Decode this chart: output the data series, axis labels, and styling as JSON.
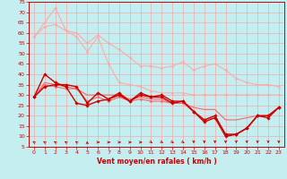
{
  "xlabel": "Vent moyen/en rafales ( km/h )",
  "xlim": [
    -0.5,
    23.5
  ],
  "ylim": [
    5,
    75
  ],
  "yticks": [
    5,
    10,
    15,
    20,
    25,
    30,
    35,
    40,
    45,
    50,
    55,
    60,
    65,
    70,
    75
  ],
  "xticks": [
    0,
    1,
    2,
    3,
    4,
    5,
    6,
    7,
    8,
    9,
    10,
    11,
    12,
    13,
    14,
    15,
    16,
    17,
    18,
    19,
    20,
    21,
    22,
    23
  ],
  "bg_color": "#c5eef0",
  "grid_color": "#ff9999",
  "series": [
    {
      "x": [
        0,
        1,
        2,
        3,
        4,
        5,
        6,
        7,
        8,
        9,
        10,
        11,
        12,
        13,
        14,
        15,
        16,
        17,
        18,
        19,
        20,
        21,
        22,
        23
      ],
      "y": [
        58,
        63,
        64,
        61,
        60,
        55,
        59,
        55,
        52,
        48,
        44,
        44,
        43,
        44,
        46,
        42,
        44,
        45,
        42,
        38,
        36,
        35,
        35,
        34
      ],
      "color": "#ffaaaa",
      "lw": 0.8,
      "marker": "D",
      "ms": 1.5,
      "zorder": 2
    },
    {
      "x": [
        0,
        1,
        2,
        3,
        4,
        5,
        6,
        7,
        8,
        9,
        10,
        11,
        12,
        13,
        14,
        15,
        16,
        17,
        18,
        19,
        20,
        21,
        22,
        23
      ],
      "y": [
        58,
        65,
        72,
        61,
        58,
        51,
        58,
        45,
        36,
        35,
        34,
        32,
        31,
        31,
        31,
        30,
        30,
        30,
        30,
        30,
        30,
        30,
        30,
        30
      ],
      "color": "#ffaaaa",
      "lw": 0.8,
      "marker": "D",
      "ms": 1.5,
      "zorder": 2
    },
    {
      "x": [
        0,
        1,
        2,
        3,
        4,
        5,
        6,
        7,
        8,
        9,
        10,
        11,
        12,
        13,
        14,
        15,
        16,
        17,
        18,
        19,
        20,
        21,
        22,
        23
      ],
      "y": [
        29,
        34,
        35,
        35,
        34,
        26,
        31,
        28,
        30,
        27,
        31,
        29,
        30,
        27,
        27,
        22,
        18,
        20,
        11,
        11,
        14,
        20,
        20,
        24
      ],
      "color": "#cc0000",
      "lw": 1.0,
      "marker": "D",
      "ms": 1.8,
      "zorder": 3
    },
    {
      "x": [
        0,
        1,
        2,
        3,
        4,
        5,
        6,
        7,
        8,
        9,
        10,
        11,
        12,
        13,
        14,
        15,
        16,
        17,
        18,
        19,
        20,
        21,
        22,
        23
      ],
      "y": [
        29,
        40,
        36,
        34,
        26,
        25,
        27,
        28,
        31,
        27,
        30,
        29,
        29,
        26,
        27,
        22,
        17,
        19,
        10,
        11,
        14,
        20,
        19,
        24
      ],
      "color": "#cc0000",
      "lw": 1.0,
      "marker": "D",
      "ms": 1.8,
      "zorder": 3
    },
    {
      "x": [
        0,
        1,
        2,
        3,
        4,
        5,
        6,
        7,
        8,
        9,
        10,
        11,
        12,
        13,
        14,
        15,
        16,
        17,
        18,
        19,
        20,
        21,
        22,
        23
      ],
      "y": [
        29,
        35,
        34,
        33,
        33,
        27,
        29,
        27,
        29,
        27,
        28,
        27,
        27,
        26,
        26,
        22,
        18,
        19,
        11,
        11,
        14,
        20,
        20,
        24
      ],
      "color": "#ff6666",
      "lw": 0.8,
      "marker": "D",
      "ms": 1.5,
      "zorder": 2
    },
    {
      "x": [
        0,
        1,
        2,
        3,
        4,
        5,
        6,
        7,
        8,
        9,
        10,
        11,
        12,
        13,
        14,
        15,
        16,
        17,
        18,
        19,
        20,
        21,
        22,
        23
      ],
      "y": [
        29,
        36,
        35,
        34,
        33,
        30,
        30,
        30,
        30,
        28,
        29,
        28,
        28,
        26,
        26,
        24,
        23,
        23,
        18,
        18,
        19,
        20,
        20,
        24
      ],
      "color": "#ff6666",
      "lw": 0.8,
      "marker": null,
      "ms": 0,
      "zorder": 2
    }
  ],
  "wind_symbols": [
    {
      "x": 0,
      "rot": 135
    },
    {
      "x": 1,
      "rot": 135
    },
    {
      "x": 2,
      "rot": 135
    },
    {
      "x": 3,
      "rot": 135
    },
    {
      "x": 4,
      "rot": 135
    },
    {
      "x": 5,
      "rot": 90
    },
    {
      "x": 6,
      "rot": 0
    },
    {
      "x": 7,
      "rot": 0
    },
    {
      "x": 8,
      "rot": 0
    },
    {
      "x": 9,
      "rot": 0
    },
    {
      "x": 10,
      "rot": 0
    },
    {
      "x": 11,
      "rot": 315
    },
    {
      "x": 12,
      "rot": 315
    },
    {
      "x": 13,
      "rot": 315
    },
    {
      "x": 14,
      "rot": 315
    },
    {
      "x": 15,
      "rot": 270
    },
    {
      "x": 16,
      "rot": 270
    },
    {
      "x": 17,
      "rot": 270
    },
    {
      "x": 18,
      "rot": 270
    },
    {
      "x": 19,
      "rot": 270
    },
    {
      "x": 20,
      "rot": 270
    },
    {
      "x": 21,
      "rot": 270
    },
    {
      "x": 22,
      "rot": 270
    },
    {
      "x": 23,
      "rot": 270
    }
  ]
}
